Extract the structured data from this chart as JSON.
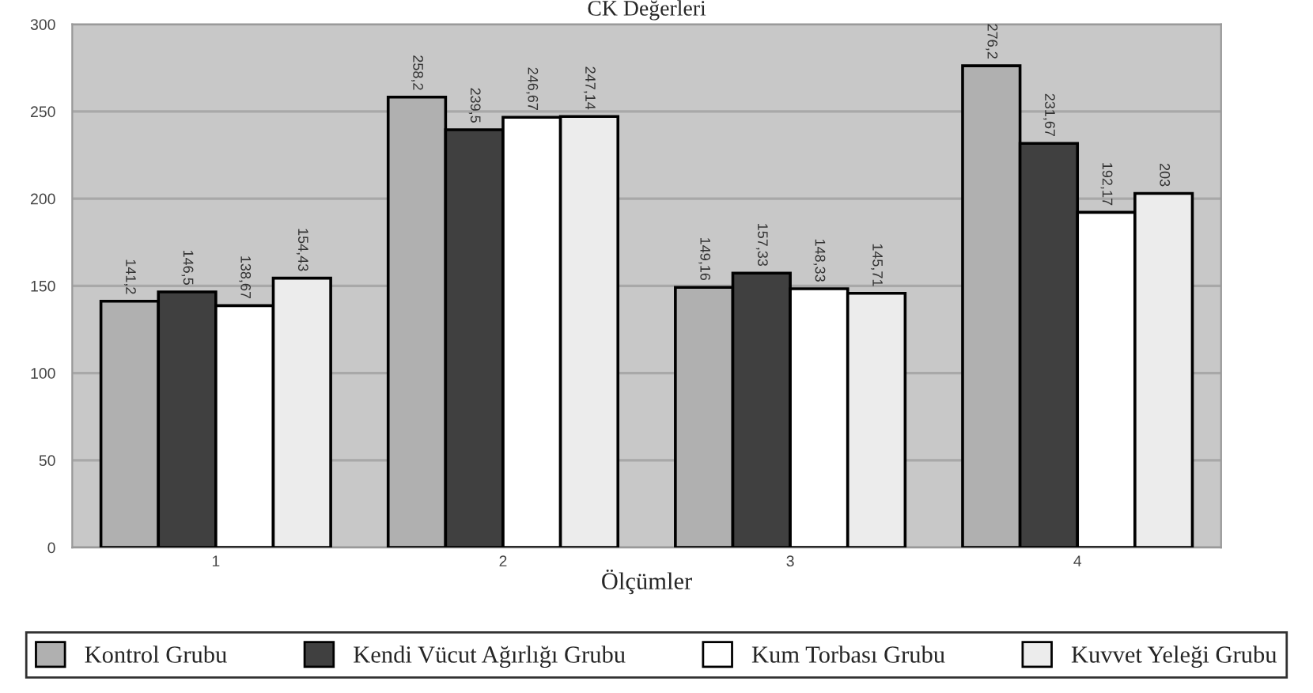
{
  "chart_data": {
    "type": "bar",
    "title": "CK Değerleri",
    "xlabel": "Ölçümler",
    "categories": [
      "1",
      "2",
      "3",
      "4"
    ],
    "series": [
      {
        "name": "Kontrol Grubu",
        "color": "#b0b0b0",
        "values": [
          141.2,
          258.2,
          149.16,
          276.2
        ],
        "value_labels": [
          "141,2",
          "258,2",
          "149,16",
          "276,2"
        ]
      },
      {
        "name": "Kendi Vücut Ağırlığı Grubu",
        "color": "#404040",
        "values": [
          146.5,
          239.5,
          157.33,
          231.67
        ],
        "value_labels": [
          "146,5",
          "239,5",
          "157,33",
          "231,67"
        ]
      },
      {
        "name": "Kum Torbası Grubu",
        "color": "#ffffff",
        "values": [
          138.67,
          246.67,
          148.33,
          192.17
        ],
        "value_labels": [
          "138,67",
          "246,67",
          "148,33",
          "192,17"
        ]
      },
      {
        "name": "Kuvvet Yeleği Grubu",
        "color": "#ececec",
        "values": [
          154.43,
          247.14,
          145.71,
          203
        ],
        "value_labels": [
          "154,43",
          "247,14",
          "145,71",
          "203"
        ]
      }
    ],
    "ylim": [
      0,
      300
    ],
    "yticks": [
      0,
      50,
      100,
      150,
      200,
      250,
      300
    ],
    "grid": "y",
    "legend": "bottom"
  }
}
